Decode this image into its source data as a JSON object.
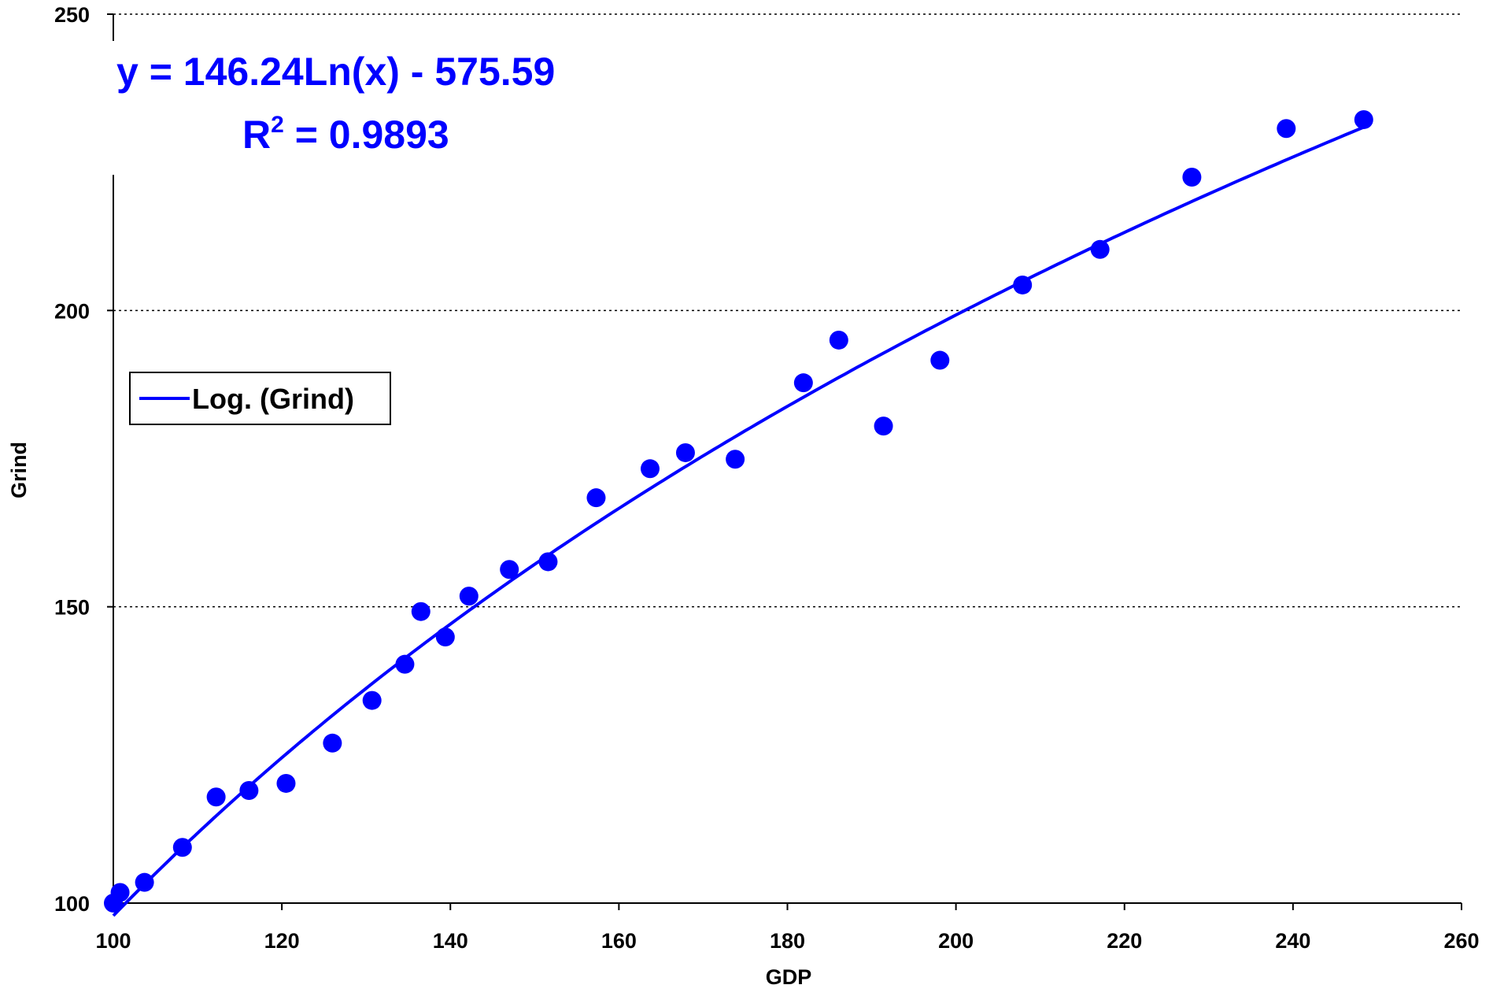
{
  "chart_data": {
    "type": "scatter",
    "xlabel": "GDP",
    "ylabel": "Grind",
    "xlim": [
      100,
      260
    ],
    "ylim": [
      100,
      250
    ],
    "x_ticks": [
      100,
      120,
      140,
      160,
      180,
      200,
      220,
      240,
      260
    ],
    "y_ticks": [
      100,
      150,
      200,
      250
    ],
    "grid": "horizontal dotted",
    "legend": {
      "position": "left-middle",
      "entries": [
        "Log. (Grind)"
      ]
    },
    "series": [
      {
        "values_x": [
          100,
          100.8,
          103.7,
          108.2,
          112.2,
          116.1,
          120.5,
          126.0,
          130.7,
          134.6,
          136.5,
          139.4,
          142.2,
          147.0,
          151.6,
          157.3,
          163.7,
          167.9,
          173.8,
          181.9,
          186.1,
          191.4,
          198.1,
          207.9,
          217.1,
          228.0,
          239.2,
          248.4
        ],
        "values_y": [
          100,
          101.8,
          103.5,
          109.4,
          117.9,
          119.0,
          120.2,
          127.0,
          134.2,
          140.3,
          149.2,
          144.9,
          151.8,
          156.3,
          157.6,
          168.4,
          173.3,
          176.0,
          174.9,
          187.8,
          195.0,
          180.5,
          191.6,
          204.3,
          210.3,
          222.5,
          230.7,
          232.2
        ],
        "color": "#0000ff"
      }
    ],
    "trendline": {
      "type": "logarithmic",
      "a": 146.24,
      "b": -575.59,
      "label": "Log. (Grind)",
      "color": "#0000ff"
    },
    "annotations": {
      "equation": "y = 146.24Ln(x) - 575.59",
      "r2_prefix": "R",
      "r2_sup": "2",
      "r2_suffix": " = 0.9893"
    }
  }
}
